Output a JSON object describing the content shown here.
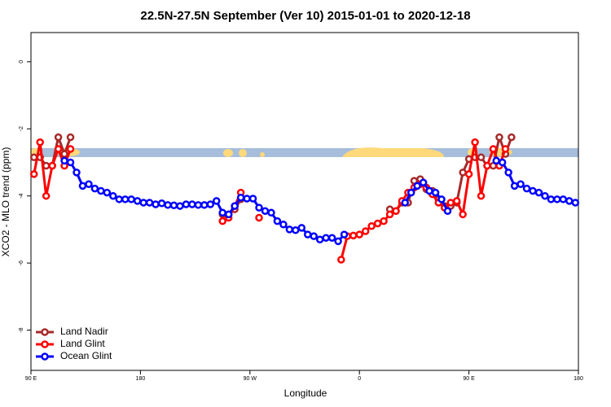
{
  "chart_data": {
    "type": "line",
    "title": "22.5N-27.5N September (Ver 10)   2015-01-01 to 2020-12-18",
    "x_label": "Longitude",
    "y_label": "XCO2 - MLO trend (ppm)",
    "xlim": [
      90,
      540
    ],
    "ylim": [
      -9.2,
      0.87
    ],
    "xticks": [
      {
        "value": 90,
        "label": "90 E"
      },
      180,
      {
        "value": 270,
        "label": "90 W"
      },
      {
        "value": 360,
        "label": "0"
      },
      {
        "value": 450,
        "label": "90 E"
      },
      {
        "value": 540,
        "label": "180"
      }
    ],
    "yticks": [
      0,
      -2,
      -4,
      -6,
      -8
    ],
    "legend": "bottom-left",
    "series": [
      {
        "name": "Land Nadir",
        "color": "#a52a2a",
        "x": [
          92.5,
          97.5,
          102.5,
          107.5,
          112.5,
          117.5,
          122.5,
          127.5,
          247.5,
          252.5,
          257.5,
          262.5,
          267.5,
          385,
          390,
          395,
          400,
          405,
          410,
          415,
          420,
          425,
          430,
          435,
          440,
          445,
          450,
          455,
          460,
          465,
          470,
          475,
          480,
          485
        ],
        "values": [
          -2.85,
          -2.85,
          -3.1,
          -3.1,
          -2.25,
          -2.75,
          -2.25,
          null,
          -4.55,
          -4.55,
          -4.4,
          -4.1,
          null,
          -4.4,
          -4.45,
          -4.2,
          -4.2,
          -3.55,
          -3.5,
          -3.8,
          -3.85,
          -4.1,
          -4.3,
          -4.3,
          -4.2,
          -3.3,
          -2.9,
          -2.85,
          -2.85,
          -3.1,
          -3.1,
          -2.25,
          -2.75,
          -2.25
        ]
      },
      {
        "name": "Land Glint",
        "color": "#ff0000",
        "x": [
          92.5,
          97.5,
          102.5,
          107.5,
          112.5,
          117.5,
          122.5,
          127.5,
          247.5,
          252.5,
          257.5,
          262.5,
          267.5,
          277.5,
          282.5,
          345,
          350,
          355,
          360,
          365,
          370,
          375,
          380,
          385,
          390,
          395,
          400,
          405,
          410,
          415,
          420,
          425,
          430,
          435,
          440,
          445,
          450,
          455,
          460,
          465,
          470,
          475,
          480
        ],
        "values": [
          -3.35,
          -2.4,
          -4.0,
          -3.1,
          -2.6,
          -3.1,
          -2.6,
          null,
          -4.75,
          -4.65,
          -4.3,
          -3.9,
          null,
          -4.65,
          null,
          -5.9,
          -5.2,
          -5.18,
          -5.15,
          -5.05,
          -4.9,
          -4.82,
          -4.75,
          -4.55,
          -4.45,
          -4.15,
          -3.9,
          -3.75,
          -3.65,
          -3.75,
          -3.95,
          -4.2,
          -4.35,
          -4.2,
          -4.15,
          -4.55,
          -3.35,
          -2.4,
          -4.0,
          -3.1,
          -2.6,
          -3.1,
          -2.6
        ]
      },
      {
        "name": "Ocean Glint",
        "color": "#0000ff",
        "x": [
          117.5,
          122.5,
          127.5,
          132.5,
          137.5,
          142.5,
          147.5,
          152.5,
          157.5,
          162.5,
          167.5,
          172.5,
          177.5,
          182.5,
          187.5,
          192.5,
          197.5,
          202.5,
          207.5,
          212.5,
          217.5,
          222.5,
          227.5,
          232.5,
          237.5,
          242.5,
          247.5,
          252.5,
          257.5,
          262.5,
          267.5,
          272.5,
          277.5,
          282.5,
          287.5,
          292.5,
          297.5,
          302.5,
          307.5,
          312.5,
          317.5,
          322.5,
          327.5,
          332.5,
          337.5,
          342.5,
          347.5,
          352.5,
          397.5,
          402.5,
          407.5,
          412.5,
          417.5,
          422.5,
          427.5,
          432.5,
          437.5,
          472.5,
          477.5,
          482.5,
          487.5,
          492.5,
          497.5,
          502.5,
          507.5,
          512.5,
          517.5,
          522.5,
          527.5,
          532.5,
          537.5
        ],
        "values": [
          -2.95,
          -3.0,
          -3.3,
          -3.7,
          -3.65,
          -3.78,
          -3.85,
          -3.9,
          -4.0,
          -4.1,
          -4.1,
          -4.1,
          -4.15,
          -4.2,
          -4.2,
          -4.25,
          -4.22,
          -4.27,
          -4.28,
          -4.3,
          -4.25,
          -4.25,
          -4.27,
          -4.27,
          -4.25,
          -4.15,
          -4.5,
          -4.55,
          -4.3,
          -4.05,
          -4.08,
          -4.08,
          -4.35,
          -4.45,
          -4.5,
          -4.75,
          -4.85,
          -5.0,
          -5.02,
          -4.95,
          -5.15,
          -5.2,
          -5.3,
          -5.25,
          -5.25,
          -5.35,
          -5.15,
          null,
          -4.2,
          -3.9,
          -3.7,
          -3.6,
          -3.85,
          -3.9,
          -4.1,
          -4.45,
          null,
          -2.95,
          -3.0,
          -3.3,
          -3.7,
          -3.65,
          -3.78,
          -3.85,
          -3.9,
          -4.0,
          -4.1,
          -4.1,
          -4.1,
          -4.15,
          -4.2
        ]
      }
    ]
  }
}
